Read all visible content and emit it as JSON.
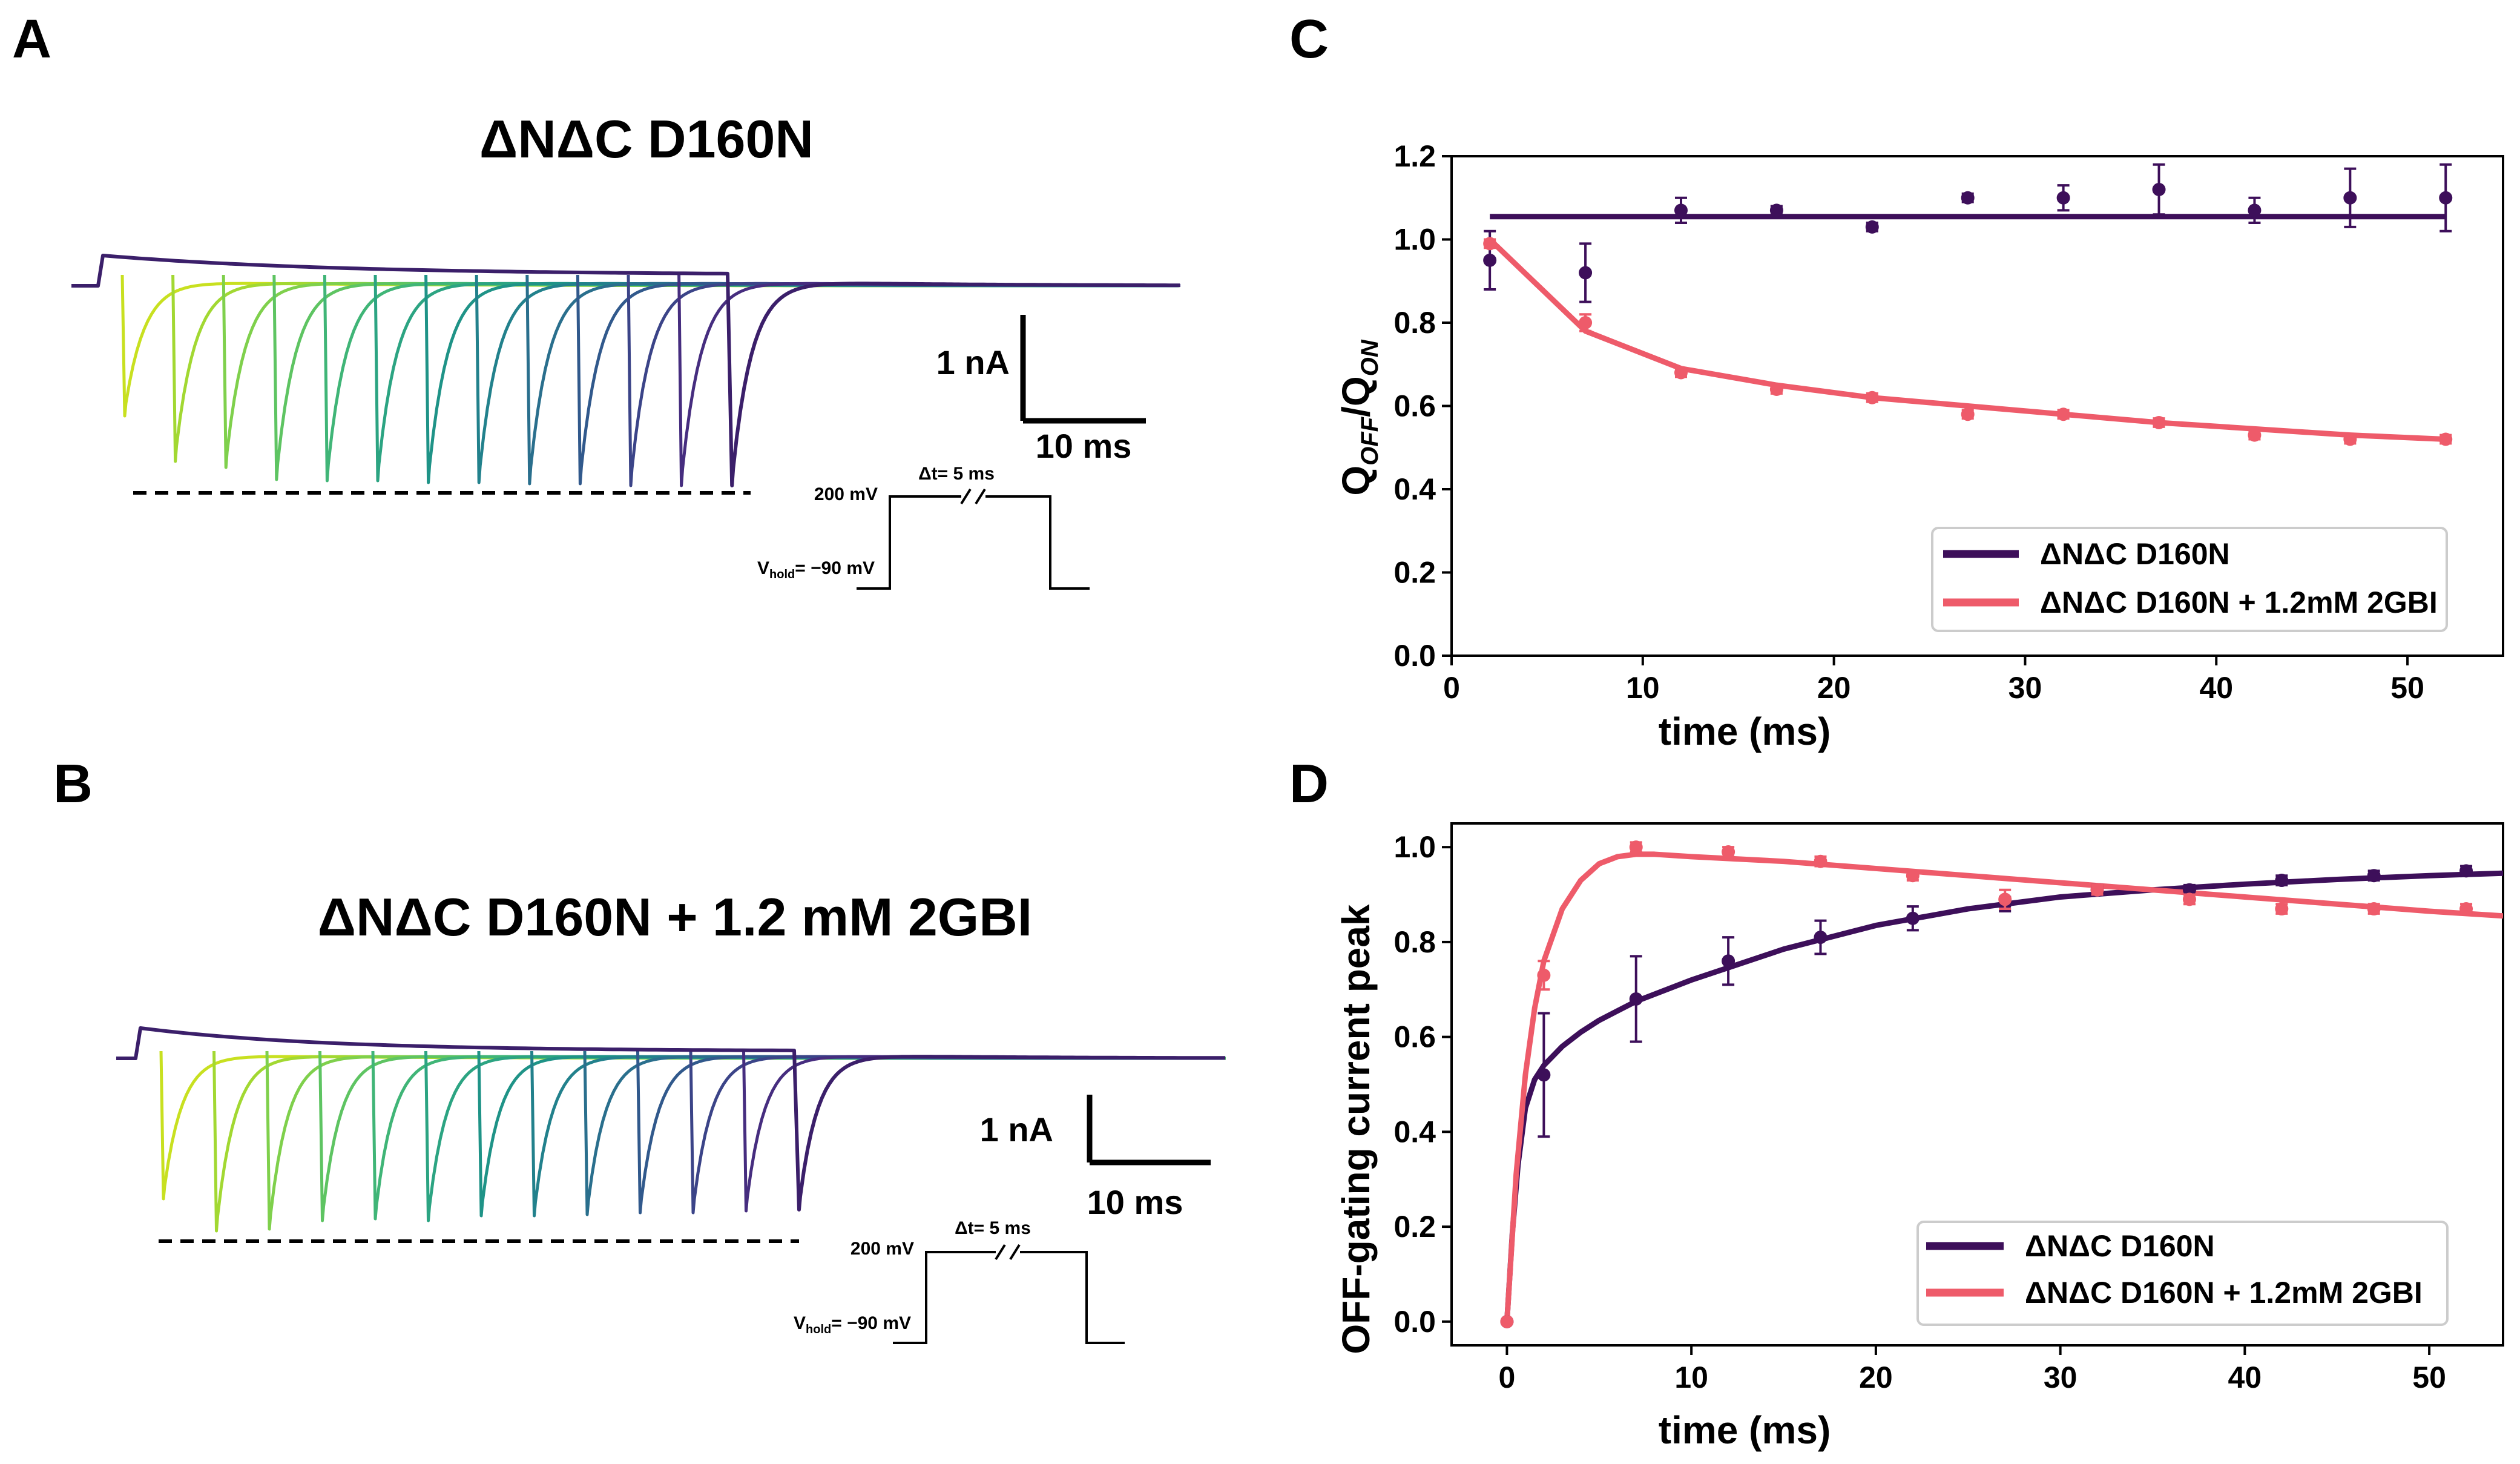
{
  "panels": {
    "A": {
      "label": "A",
      "title": "ΔNΔC D160N"
    },
    "B": {
      "label": "B",
      "title": "ΔNΔC D160N + 1.2 mM 2GBI"
    },
    "C": {
      "label": "C"
    },
    "D": {
      "label": "D"
    }
  },
  "scalebar": {
    "current": "1 nA",
    "time": "10 ms"
  },
  "protocol": {
    "step": "200 mV",
    "hold_prefix": "V",
    "hold_sub": "hold",
    "hold_value": "= −90 mV",
    "delta": "Δt= 5 ms"
  },
  "trace_colors": [
    "#c8e020",
    "#a2d832",
    "#7fd04c",
    "#5ec462",
    "#40b577",
    "#2ca482",
    "#1f9387",
    "#22818c",
    "#2a6f8d",
    "#31598c",
    "#3b4488",
    "#462d7f",
    "#46176a"
  ],
  "colors": {
    "drug_free": "#3d0f5a",
    "drug": "#ee5b6a",
    "trace_baseline": "#3b1f6a"
  },
  "chart_data": [
    {
      "type": "scatter",
      "panel": "C",
      "xlabel": "time (ms)",
      "ylabel_main": "Q",
      "ylabel_sub1": "OFF",
      "ylabel_mid": "/Q",
      "ylabel_sub2": "ON",
      "xlim": [
        0,
        55
      ],
      "ylim": [
        0,
        1.2
      ],
      "xticks": [
        0,
        10,
        20,
        30,
        40,
        50
      ],
      "yticks": [
        0.0,
        0.2,
        0.4,
        0.6,
        0.8,
        1.0,
        1.2
      ],
      "legend_position": "lower-right",
      "series": [
        {
          "name": "ΔNΔC D160N",
          "x": [
            2,
            7,
            12,
            17,
            22,
            27,
            32,
            37,
            42,
            47,
            52
          ],
          "y": [
            0.95,
            0.92,
            1.07,
            1.07,
            1.03,
            1.1,
            1.1,
            1.12,
            1.07,
            1.1,
            1.1
          ],
          "err": [
            0.07,
            0.07,
            0.03,
            0.01,
            0.01,
            0.01,
            0.03,
            0.06,
            0.03,
            0.07,
            0.08
          ],
          "fit_x": [
            2,
            52
          ],
          "fit_y": [
            1.055,
            1.055
          ]
        },
        {
          "name": "ΔNΔC D160N + 1.2mM 2GBI",
          "x": [
            2,
            7,
            12,
            17,
            22,
            27,
            32,
            37,
            42,
            47,
            52
          ],
          "y": [
            0.99,
            0.8,
            0.68,
            0.64,
            0.62,
            0.58,
            0.58,
            0.56,
            0.53,
            0.52,
            0.52
          ],
          "err": [
            0.01,
            0.02,
            0.01,
            0.01,
            0.01,
            0.01,
            0.01,
            0.01,
            0.01,
            0.01,
            0.01
          ],
          "fit_x": [
            2,
            7,
            12,
            17,
            22,
            27,
            32,
            37,
            42,
            47,
            52
          ],
          "fit_y": [
            1.0,
            0.78,
            0.69,
            0.65,
            0.62,
            0.6,
            0.58,
            0.56,
            0.545,
            0.53,
            0.52
          ]
        }
      ]
    },
    {
      "type": "scatter",
      "panel": "D",
      "xlabel": "time (ms)",
      "ylabel": "OFF-gating current peak",
      "xlim": [
        -3,
        54
      ],
      "ylim": [
        -0.05,
        1.05
      ],
      "xticks": [
        0,
        10,
        20,
        30,
        40,
        50
      ],
      "yticks": [
        0.0,
        0.2,
        0.4,
        0.6,
        0.8,
        1.0
      ],
      "legend_position": "lower-right",
      "series": [
        {
          "name": "ΔNΔC D160N",
          "x": [
            0,
            2,
            7,
            12,
            17,
            22,
            27,
            32,
            37,
            42,
            47,
            52
          ],
          "y": [
            0.0,
            0.52,
            0.68,
            0.76,
            0.81,
            0.85,
            0.88,
            0.91,
            0.91,
            0.93,
            0.94,
            0.95
          ],
          "err": [
            0,
            0.13,
            0.09,
            0.05,
            0.035,
            0.025,
            0.015,
            0.01,
            0.01,
            0.01,
            0.01,
            0.01
          ],
          "fit_x": [
            0,
            0.3,
            0.6,
            1,
            1.5,
            2,
            3,
            4,
            5,
            7,
            10,
            15,
            20,
            25,
            30,
            35,
            40,
            45,
            50,
            54
          ],
          "fit_y": [
            0.0,
            0.19,
            0.33,
            0.45,
            0.51,
            0.54,
            0.58,
            0.61,
            0.635,
            0.675,
            0.72,
            0.785,
            0.835,
            0.87,
            0.895,
            0.91,
            0.922,
            0.932,
            0.94,
            0.945
          ]
        },
        {
          "name": "ΔNΔC D160N + 1.2mM 2GBI",
          "x": [
            0,
            2,
            7,
            12,
            17,
            22,
            27,
            32,
            37,
            42,
            47,
            52
          ],
          "y": [
            0.0,
            0.73,
            1.0,
            0.99,
            0.97,
            0.94,
            0.89,
            0.91,
            0.89,
            0.87,
            0.87,
            0.87
          ],
          "err": [
            0,
            0.03,
            0.01,
            0.01,
            0.01,
            0.01,
            0.02,
            0.01,
            0.01,
            0.01,
            0.01,
            0.01
          ],
          "fit_x": [
            0,
            0.5,
            1,
            1.5,
            2,
            3,
            4,
            5,
            6,
            7,
            8,
            10,
            15,
            20,
            25,
            30,
            35,
            40,
            45,
            50,
            54
          ],
          "fit_y": [
            0.0,
            0.31,
            0.52,
            0.66,
            0.76,
            0.87,
            0.93,
            0.965,
            0.98,
            0.985,
            0.985,
            0.98,
            0.97,
            0.955,
            0.94,
            0.925,
            0.91,
            0.895,
            0.88,
            0.865,
            0.855
          ]
        }
      ]
    }
  ]
}
